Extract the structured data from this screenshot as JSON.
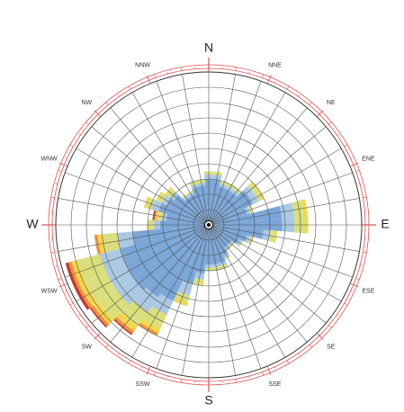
{
  "chart_data": {
    "type": "windrose",
    "directions": [
      "N",
      "NNE",
      "NE",
      "ENE",
      "E",
      "ESE",
      "SE",
      "SSE",
      "S",
      "SSW",
      "SW",
      "WSW",
      "W",
      "WNW",
      "NW",
      "NNW"
    ],
    "x": [
      0,
      10,
      20,
      30,
      40,
      50,
      60,
      70,
      80,
      90,
      100,
      110,
      120,
      130,
      140,
      150,
      160,
      170,
      180,
      190,
      200,
      210,
      220,
      230,
      240,
      250,
      260,
      270,
      280,
      290,
      300,
      310,
      320,
      330,
      340,
      350
    ],
    "series": [
      {
        "color": "#7ba6d8",
        "values": [
          3,
          3,
          2.6,
          2.6,
          2.6,
          3.2,
          3.2,
          2.6,
          4.8,
          4.8,
          3.6,
          2.6,
          2.2,
          1.8,
          1.8,
          2.2,
          2.6,
          2.6,
          2.6,
          3.2,
          4,
          5.5,
          5.8,
          6,
          6,
          6,
          5,
          3.2,
          2.8,
          3.4,
          3,
          2.8,
          2.2,
          2.2,
          2.6,
          2.6
        ]
      },
      {
        "color": "#abc9e4",
        "values": [
          0.3,
          0.3,
          0.2,
          0.2,
          0.2,
          0.4,
          0.4,
          0.2,
          0.8,
          0.8,
          0.4,
          0.2,
          0.2,
          0.1,
          0.1,
          0.2,
          0.2,
          0.2,
          0.2,
          0.4,
          0.8,
          1,
          1.2,
          1.4,
          1.4,
          1.4,
          1,
          0.4,
          0.3,
          0.5,
          0.4,
          0.3,
          0.2,
          0.2,
          0.2,
          0.2
        ]
      },
      {
        "color": "#dadf7c",
        "values": [
          0.2,
          0.2,
          0.2,
          0.2,
          0.2,
          0.3,
          0.3,
          0.2,
          0.7,
          0.7,
          0.4,
          0.2,
          0.1,
          0.1,
          0.1,
          0.1,
          0.2,
          0.2,
          0.2,
          0.3,
          0.5,
          1,
          1.1,
          1.4,
          1.5,
          1.5,
          1,
          0.3,
          0.3,
          0.4,
          0.3,
          0.3,
          0.1,
          0.1,
          0.2,
          0.2
        ]
      },
      {
        "color": "#f2d64c",
        "values": [
          0,
          0,
          0,
          0,
          0,
          0.1,
          0.1,
          0,
          0.2,
          0.2,
          0.1,
          0,
          0,
          0,
          0,
          0,
          0,
          0,
          0,
          0.1,
          0.2,
          0.3,
          0.4,
          0.4,
          0.4,
          0.4,
          0.3,
          0.1,
          0.1,
          0.1,
          0.1,
          0.1,
          0,
          0,
          0,
          0
        ]
      },
      {
        "color": "#ee9236",
        "values": [
          0,
          0,
          0,
          0,
          0,
          0,
          0,
          0,
          0,
          0,
          0,
          0,
          0,
          0,
          0,
          0,
          0,
          0,
          0,
          0,
          0,
          0.2,
          0.2,
          0.2,
          0.2,
          0.2,
          0.2,
          0,
          0.1,
          0,
          0,
          0,
          0,
          0,
          0,
          0
        ]
      },
      {
        "color": "#c8362a",
        "values": [
          0,
          0,
          0,
          0,
          0,
          0,
          0,
          0,
          0,
          0,
          0,
          0,
          0,
          0,
          0,
          0,
          0,
          0,
          0,
          0,
          0,
          0,
          0.1,
          0.1,
          0.2,
          0.2,
          0,
          0,
          0.1,
          0,
          0,
          0,
          0,
          0,
          0,
          0
        ]
      }
    ],
    "rlim": [
      0,
      10
    ],
    "rticks": [
      1,
      2,
      3,
      4,
      5,
      6,
      7,
      8,
      9,
      10
    ],
    "grid": true
  }
}
